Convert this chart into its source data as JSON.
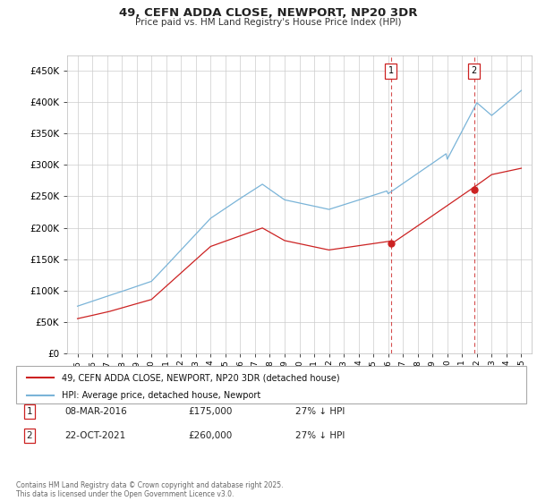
{
  "title": "49, CEFN ADDA CLOSE, NEWPORT, NP20 3DR",
  "subtitle": "Price paid vs. HM Land Registry's House Price Index (HPI)",
  "hpi_color": "#7ab4d8",
  "price_color": "#cc2222",
  "dashed_line_color": "#cc2222",
  "background_color": "#ffffff",
  "grid_color": "#cccccc",
  "ylim": [
    0,
    475000
  ],
  "yticks": [
    0,
    50000,
    100000,
    150000,
    200000,
    250000,
    300000,
    350000,
    400000,
    450000
  ],
  "legend_items": [
    {
      "label": "49, CEFN ADDA CLOSE, NEWPORT, NP20 3DR (detached house)",
      "color": "#cc2222"
    },
    {
      "label": "HPI: Average price, detached house, Newport",
      "color": "#7ab4d8"
    }
  ],
  "annotations": [
    {
      "num": "1",
      "date": "08-MAR-2016",
      "price": "£175,000",
      "pct": "27% ↓ HPI"
    },
    {
      "num": "2",
      "date": "22-OCT-2021",
      "price": "£260,000",
      "pct": "27% ↓ HPI"
    }
  ],
  "footer": "Contains HM Land Registry data © Crown copyright and database right 2025.\nThis data is licensed under the Open Government Licence v3.0.",
  "marker1_x": 2016.18,
  "marker1_y": 175000,
  "marker2_x": 2021.81,
  "marker2_y": 260000,
  "xlim_left": 1994.3,
  "xlim_right": 2025.7
}
